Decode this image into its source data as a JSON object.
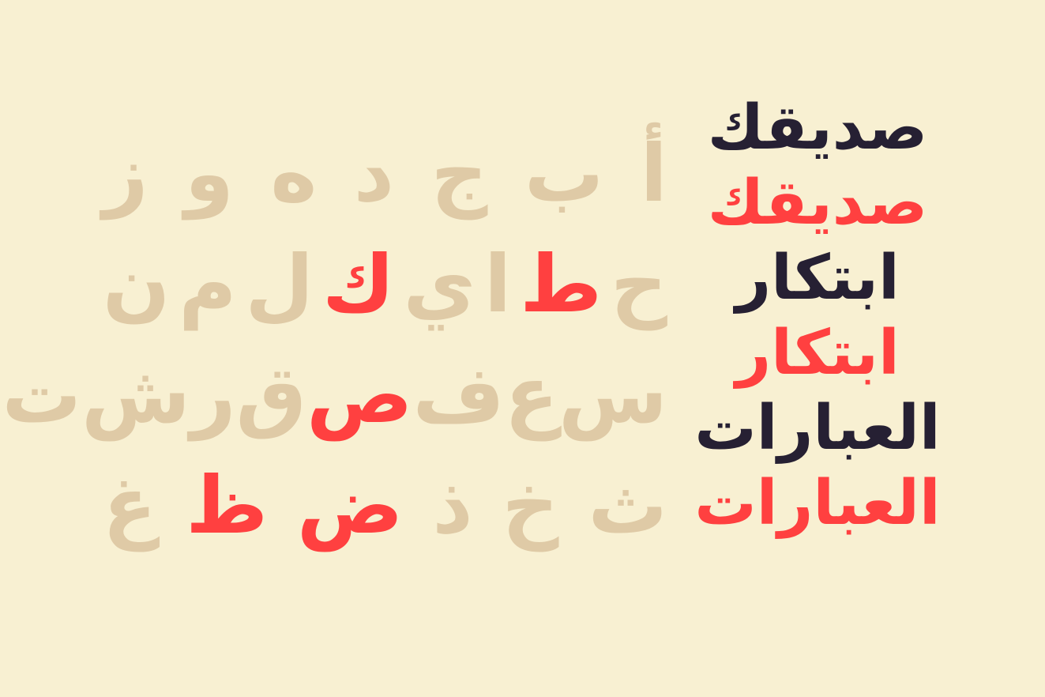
{
  "colors": {
    "background": "#f8f0d2",
    "letter": "#dfcaa6",
    "accent": "#ff4040",
    "dark": "#262033"
  },
  "letters": [
    [
      {
        "c": "أ",
        "hl": false
      },
      {
        "c": "ب",
        "hl": false
      },
      {
        "c": "ج",
        "hl": false
      },
      {
        "c": "د",
        "hl": false
      },
      {
        "c": "ه",
        "hl": false
      },
      {
        "c": "و",
        "hl": false
      },
      {
        "c": "ز",
        "hl": false
      }
    ],
    [
      {
        "c": "ح",
        "hl": false
      },
      {
        "c": "ط",
        "hl": true
      },
      {
        "c": "ا",
        "hl": false
      },
      {
        "c": "ي",
        "hl": false
      },
      {
        "c": "ك",
        "hl": true
      },
      {
        "c": "ل",
        "hl": false
      },
      {
        "c": "م",
        "hl": false
      },
      {
        "c": "ن",
        "hl": false
      }
    ],
    [
      {
        "c": "س",
        "hl": false
      },
      {
        "c": "ع",
        "hl": false
      },
      {
        "c": "ف",
        "hl": false
      },
      {
        "c": "ص",
        "hl": true
      },
      {
        "c": "ق",
        "hl": false
      },
      {
        "c": "ر",
        "hl": false
      },
      {
        "c": "ش",
        "hl": false
      },
      {
        "c": "ت",
        "hl": false
      }
    ],
    [
      {
        "c": "ث",
        "hl": false
      },
      {
        "c": "خ",
        "hl": false
      },
      {
        "c": "ذ",
        "hl": false
      },
      {
        "c": "ض",
        "hl": true
      },
      {
        "c": "ظ",
        "hl": true
      },
      {
        "c": "غ",
        "hl": false
      }
    ]
  ],
  "words": [
    {
      "text": "صديقك",
      "color": "dark"
    },
    {
      "text": "صديقك",
      "color": "red"
    },
    {
      "text": "ابتكار",
      "color": "dark"
    },
    {
      "text": "ابتكار",
      "color": "red"
    },
    {
      "text": "العبارات",
      "color": "dark"
    },
    {
      "text": "العبارات",
      "color": "red"
    }
  ]
}
